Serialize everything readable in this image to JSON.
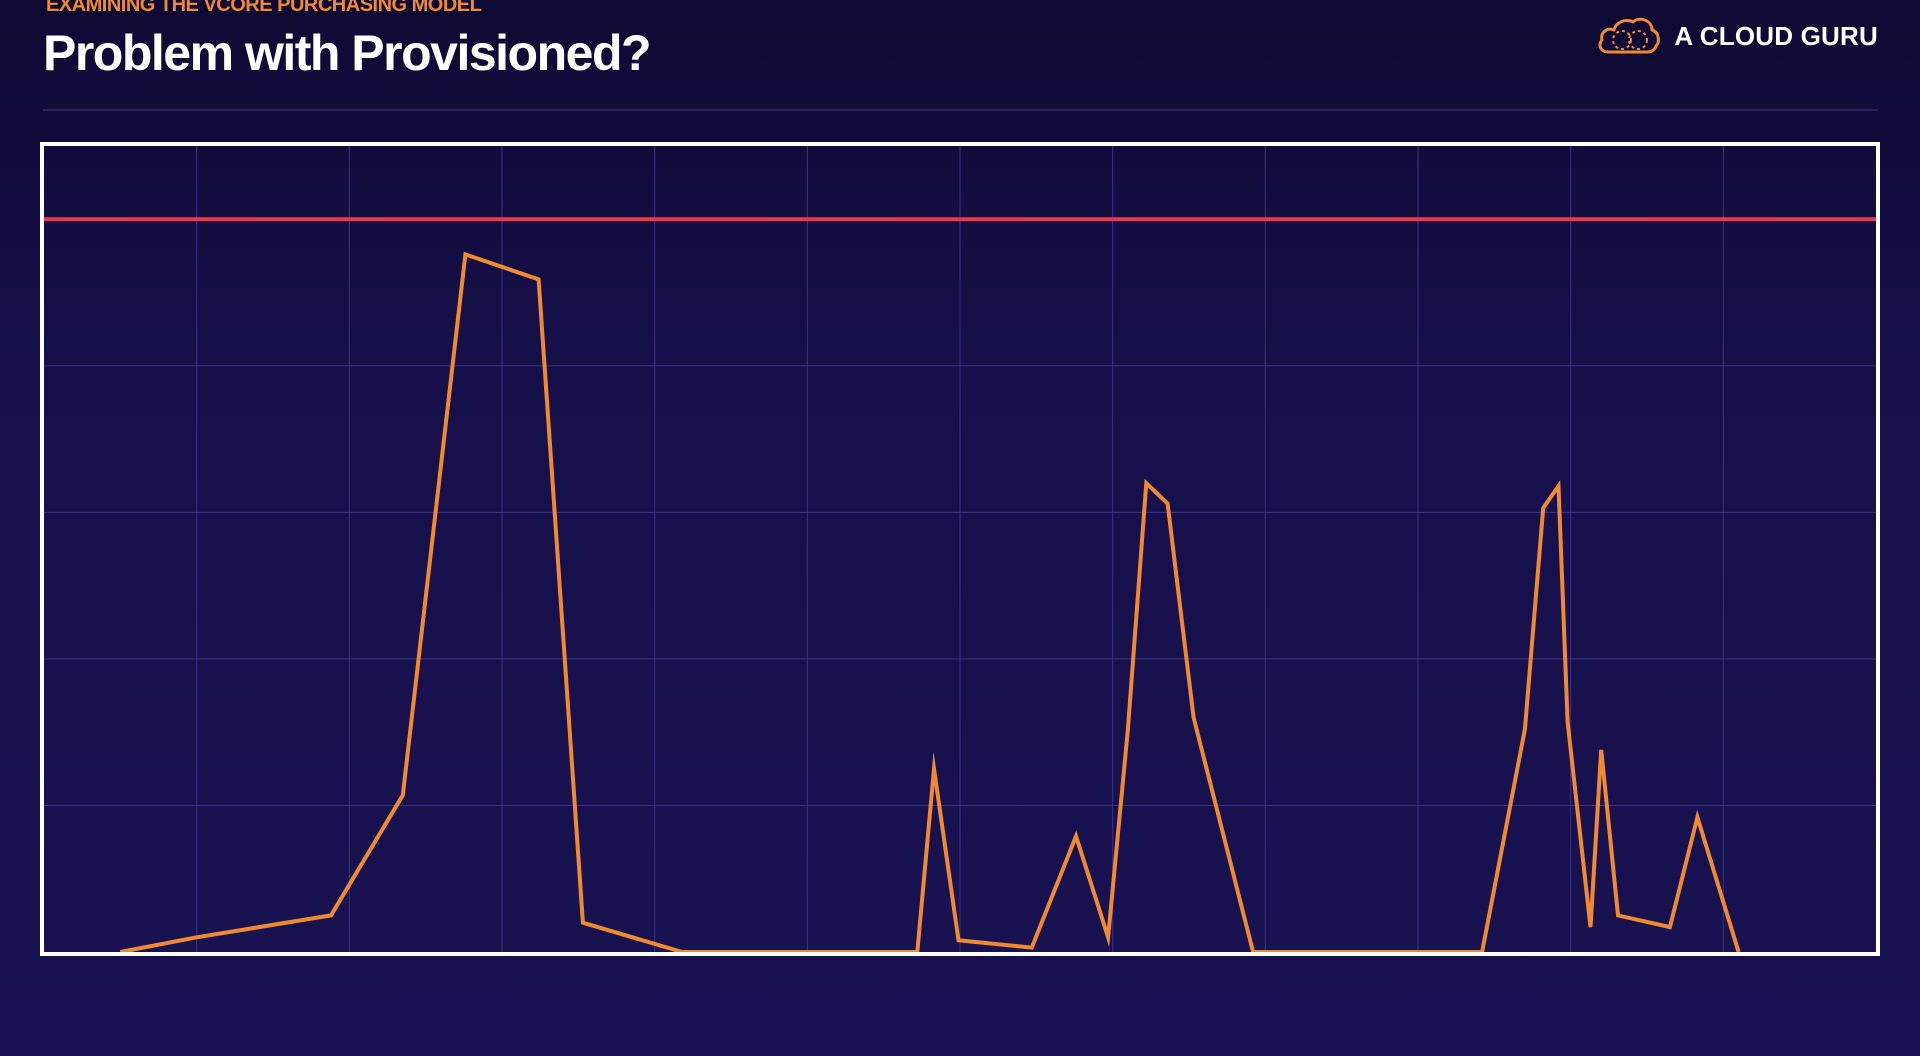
{
  "header": {
    "eyebrow": "EXAMINING THE VCORE PURCHASING MODEL",
    "title": "Problem with Provisioned?"
  },
  "brand": {
    "name": "A CLOUD GURU",
    "logo_icon": "cloud-logo-icon"
  },
  "colors": {
    "accent": "#f08a30",
    "title": "#ffffff",
    "threshold": "#e6394a",
    "usage_line": "#f08a30",
    "grid": "#3f3187",
    "frame": "#ffffff"
  },
  "chart_data": {
    "type": "line",
    "title": "",
    "xlabel": "",
    "ylabel": "",
    "xlim": [
      0,
      12
    ],
    "ylim": [
      0,
      5.5
    ],
    "grid": true,
    "legend": "none",
    "threshold": {
      "y": 5.0
    },
    "series": [
      {
        "values": [
          [
            0.5,
            0.0
          ],
          [
            1.0,
            0.1
          ],
          [
            1.88,
            0.25
          ],
          [
            2.35,
            1.07
          ],
          [
            2.76,
            4.76
          ],
          [
            3.24,
            4.59
          ],
          [
            3.53,
            0.2
          ],
          [
            4.18,
            0.0
          ],
          [
            5.72,
            0.0
          ],
          [
            5.83,
            1.25
          ],
          [
            5.99,
            0.08
          ],
          [
            6.47,
            0.03
          ],
          [
            6.76,
            0.79
          ],
          [
            6.97,
            0.1
          ],
          [
            7.1,
            1.52
          ],
          [
            7.22,
            3.2
          ],
          [
            7.36,
            3.06
          ],
          [
            7.53,
            1.6
          ],
          [
            7.92,
            0.0
          ],
          [
            9.42,
            0.0
          ],
          [
            9.7,
            1.52
          ],
          [
            9.82,
            3.03
          ],
          [
            9.92,
            3.18
          ],
          [
            9.98,
            1.57
          ],
          [
            10.13,
            0.17
          ],
          [
            10.2,
            1.38
          ],
          [
            10.31,
            0.25
          ],
          [
            10.65,
            0.17
          ],
          [
            10.83,
            0.92
          ],
          [
            11.1,
            0.0
          ]
        ]
      }
    ]
  }
}
